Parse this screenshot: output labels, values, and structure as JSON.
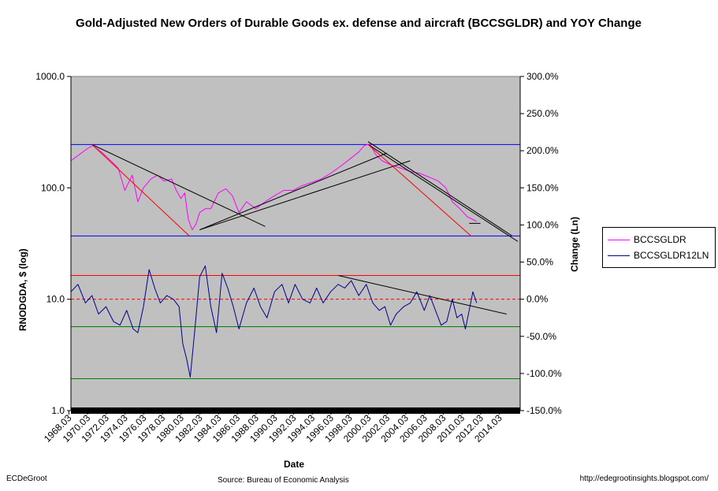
{
  "chart_data": {
    "type": "line",
    "title": "Gold-Adjusted New Orders of Durable Goods ex. defense and aircraft (BCCSGLDR) and YOY Change",
    "ylabel": "RNODGDA, $ (log)",
    "y2label": "Change (Ln)",
    "xlabel": "Date",
    "source": "Source:  Bureau of Economic Analysis",
    "author": "ECDeGroot",
    "url": "http://edegrootinsights.blogspot.com/",
    "y_scale": "log",
    "ylim": [
      1,
      1000
    ],
    "y2lim": [
      -150,
      300
    ],
    "y_ticks": [
      "1000.0",
      "100.0",
      "10.0",
      "1.0"
    ],
    "y2_ticks": [
      "300.0%",
      "250.0%",
      "200.0%",
      "150.0%",
      "100.0%",
      "50.0%",
      "0.0%",
      "-50.0%",
      "-100.0%",
      "-150.0%"
    ],
    "x_ticks": [
      "1968.03",
      "1970.03",
      "1972.03",
      "1974.03",
      "1976.03",
      "1978.03",
      "1980.03",
      "1982.03",
      "1984.03",
      "1986.03",
      "1988.03",
      "1990.03",
      "1992.03",
      "1994.03",
      "1996.03",
      "1998.03",
      "2000.03",
      "2002.03",
      "2004.03",
      "2006.03",
      "2008.03",
      "2010.03",
      "2012.03",
      "2014.03"
    ],
    "xlim": [
      1968.25,
      2016.25
    ],
    "grid": false,
    "legend_position": "right",
    "background": "#c0c0c0",
    "series": [
      {
        "name": "BCCSGLDR",
        "axis": "left",
        "color": "#ff00ff",
        "x": [
          1968.25,
          1969.0,
          1970.0,
          1970.6,
          1971.5,
          1972.5,
          1973.3,
          1974.0,
          1974.8,
          1975.4,
          1976.0,
          1976.8,
          1977.5,
          1978.2,
          1979.0,
          1979.5,
          1980.0,
          1980.4,
          1980.8,
          1981.2,
          1981.6,
          1982.0,
          1982.6,
          1983.2,
          1984.0,
          1984.8,
          1985.5,
          1986.2,
          1987.0,
          1988.0,
          1989.0,
          1990.0,
          1991.0,
          1992.0,
          1993.0,
          1994.0,
          1995.0,
          1996.0,
          1997.0,
          1998.0,
          1999.0,
          1999.6,
          2000.2,
          2000.8,
          2001.5,
          2002.5,
          2003.5,
          2004.5,
          2005.5,
          2006.5,
          2007.5,
          2008.3,
          2009.0,
          2009.8,
          2010.6,
          2011.2,
          2011.6
        ],
        "y": [
          175,
          195,
          225,
          240,
          210,
          175,
          150,
          95,
          130,
          75,
          100,
          120,
          130,
          115,
          120,
          95,
          80,
          90,
          52,
          42,
          47,
          60,
          65,
          65,
          90,
          98,
          85,
          60,
          75,
          65,
          75,
          85,
          95,
          95,
          105,
          112,
          120,
          135,
          155,
          180,
          210,
          240,
          248,
          200,
          175,
          160,
          150,
          140,
          135,
          125,
          115,
          100,
          75,
          65,
          55,
          52,
          50
        ]
      },
      {
        "name": "BCCSGLDR12LN",
        "axis": "right",
        "color": "#00008b",
        "x": [
          1968.25,
          1969.0,
          1969.8,
          1970.5,
          1971.2,
          1972.0,
          1972.8,
          1973.5,
          1974.2,
          1974.9,
          1975.4,
          1976.0,
          1976.6,
          1977.2,
          1977.8,
          1978.5,
          1979.2,
          1979.8,
          1980.2,
          1980.6,
          1981.0,
          1981.5,
          1982.0,
          1982.6,
          1983.2,
          1983.8,
          1984.4,
          1985.0,
          1985.6,
          1986.2,
          1987.0,
          1987.8,
          1988.5,
          1989.2,
          1990.0,
          1990.8,
          1991.5,
          1992.2,
          1993.0,
          1993.8,
          1994.5,
          1995.2,
          1996.0,
          1996.8,
          1997.5,
          1998.2,
          1999.0,
          1999.8,
          2000.5,
          2001.2,
          2001.8,
          2002.4,
          2003.0,
          2003.8,
          2004.5,
          2005.2,
          2006.0,
          2006.6,
          2007.2,
          2007.8,
          2008.4,
          2009.0,
          2009.5,
          2010.0,
          2010.4,
          2010.8,
          2011.2,
          2011.6
        ],
        "y": [
          10,
          20,
          -5,
          5,
          -20,
          -10,
          -30,
          -35,
          -15,
          -40,
          -45,
          -10,
          40,
          15,
          -5,
          5,
          0,
          -10,
          -60,
          -80,
          -105,
          -40,
          30,
          45,
          -10,
          -45,
          35,
          15,
          -10,
          -40,
          -5,
          15,
          -10,
          -25,
          10,
          20,
          -5,
          20,
          0,
          -5,
          15,
          -5,
          10,
          20,
          15,
          25,
          5,
          20,
          -5,
          -15,
          -10,
          -35,
          -20,
          -10,
          -5,
          10,
          -15,
          5,
          -15,
          -35,
          -30,
          0,
          -25,
          -20,
          -40,
          -15,
          10,
          -5
        ]
      }
    ],
    "reference_lines_left": [
      {
        "y": 245,
        "color": "#0000ff"
      },
      {
        "y": 37,
        "color": "#0000ff"
      },
      {
        "y": 1.0,
        "color": "#000000",
        "thick": true
      }
    ],
    "reference_lines_right": [
      {
        "y": 32,
        "color": "#ff0000",
        "dash": false
      },
      {
        "y": 0,
        "color": "#ff0000",
        "dash": true
      },
      {
        "y": -37,
        "color": "#008000",
        "dash": false
      },
      {
        "y": -107,
        "color": "#008000",
        "dash": false
      }
    ],
    "trend_lines_left": [
      {
        "color": "#000000",
        "x": [
          1970.5,
          1989.0
        ],
        "y": [
          245,
          45
        ]
      },
      {
        "color": "#ff0000",
        "x": [
          1970.5,
          1980.9
        ],
        "y": [
          245,
          37
        ]
      },
      {
        "color": "#000000",
        "x": [
          1982.0,
          2002.0
        ],
        "y": [
          42,
          205
        ]
      },
      {
        "color": "#000000",
        "x": [
          1982.0,
          2004.5
        ],
        "y": [
          42,
          175
        ]
      },
      {
        "color": "#000000",
        "x": [
          2000.0,
          2015.4
        ],
        "y": [
          260,
          37
        ]
      },
      {
        "color": "#000000",
        "x": [
          2000.0,
          2016.0
        ],
        "y": [
          245,
          33
        ]
      },
      {
        "color": "#ff0000",
        "x": [
          2000.0,
          2011.0
        ],
        "y": [
          245,
          37
        ]
      },
      {
        "color": "#000000",
        "x": [
          2010.8,
          2012.0
        ],
        "y": [
          48,
          48
        ]
      }
    ],
    "trend_lines_right": [
      {
        "color": "#000000",
        "x": [
          1996.8,
          2014.8
        ],
        "y": [
          32,
          -20
        ]
      }
    ]
  }
}
